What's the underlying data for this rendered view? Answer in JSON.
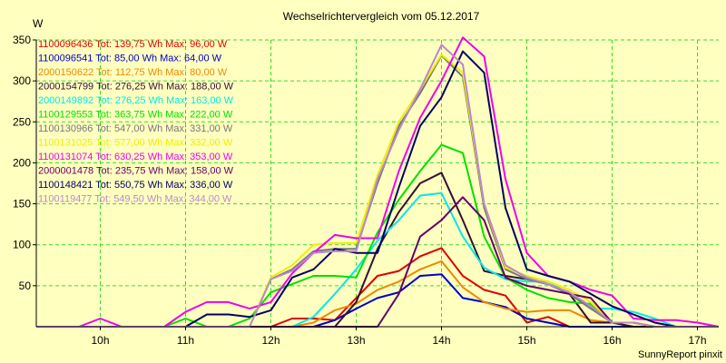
{
  "background_color": "#ffffc0",
  "plot_color": "#ffffc0",
  "grid_color": "#33dd33",
  "chart_data": {
    "type": "line",
    "title": "Wechselrichtervergleich vom 05.12.2017",
    "ylabel": "W",
    "xlabel": "",
    "footer": "SunnyReport pinxit",
    "ylim": [
      0,
      350
    ],
    "xlim": [
      9.25,
      17.25
    ],
    "x_ticks": [
      {
        "value": 10,
        "label": "10h"
      },
      {
        "value": 11,
        "label": "11h"
      },
      {
        "value": 12,
        "label": "12h"
      },
      {
        "value": 13,
        "label": "13h"
      },
      {
        "value": 14,
        "label": "14h"
      },
      {
        "value": 15,
        "label": "15h"
      },
      {
        "value": 16,
        "label": "16h"
      },
      {
        "value": 17,
        "label": "17h"
      }
    ],
    "y_ticks": [
      {
        "value": 50,
        "label": "50"
      },
      {
        "value": 100,
        "label": "100"
      },
      {
        "value": 150,
        "label": "150"
      },
      {
        "value": 200,
        "label": "200"
      },
      {
        "value": 250,
        "label": "250"
      },
      {
        "value": 300,
        "label": "300"
      },
      {
        "value": 350,
        "label": "350"
      }
    ],
    "grid": true,
    "legend_position": "top-left",
    "x": [
      9.25,
      9.5,
      9.75,
      10.0,
      10.25,
      10.5,
      10.75,
      11.0,
      11.25,
      11.5,
      11.75,
      12.0,
      12.25,
      12.5,
      12.75,
      13.0,
      13.25,
      13.5,
      13.75,
      14.0,
      14.25,
      14.5,
      14.75,
      15.0,
      15.25,
      15.5,
      15.75,
      16.0,
      16.25,
      16.5,
      16.75,
      17.0,
      17.25
    ],
    "series": [
      {
        "name": "1100096436 Tot: 139,75 Wh Max: 96,00 W",
        "color": "#dd0000",
        "values": [
          0,
          0,
          0,
          0,
          0,
          0,
          0,
          0,
          0,
          0,
          0,
          0,
          10,
          10,
          8,
          35,
          62,
          68,
          86,
          96,
          62,
          45,
          38,
          5,
          12,
          0,
          0,
          0,
          0,
          0,
          0,
          0,
          0
        ]
      },
      {
        "name": "1100096541 Tot: 85,00 Wh Max: 64,00 W",
        "color": "#0000cc",
        "values": [
          0,
          0,
          0,
          0,
          0,
          0,
          0,
          0,
          0,
          0,
          0,
          0,
          0,
          0,
          8,
          22,
          35,
          42,
          62,
          64,
          35,
          30,
          24,
          10,
          5,
          0,
          0,
          0,
          0,
          0,
          0,
          0,
          0
        ]
      },
      {
        "name": "2000150622 Tot: 112,75 Wh Max: 80,00 W",
        "color": "#ee8800",
        "values": [
          0,
          0,
          0,
          0,
          0,
          0,
          0,
          0,
          0,
          0,
          0,
          0,
          0,
          5,
          20,
          28,
          45,
          55,
          70,
          80,
          48,
          30,
          22,
          18,
          20,
          20,
          8,
          5,
          0,
          0,
          0,
          0,
          0
        ]
      },
      {
        "name": "2000154799 Tot: 276,25 Wh Max: 188,00 W",
        "color": "#331133",
        "values": [
          0,
          0,
          0,
          0,
          0,
          0,
          0,
          0,
          0,
          0,
          0,
          0,
          0,
          0,
          0,
          30,
          95,
          140,
          175,
          188,
          130,
          68,
          62,
          58,
          52,
          40,
          5,
          5,
          0,
          0,
          0,
          0,
          0
        ]
      },
      {
        "name": "2000149892 Tot: 276,25 Wh Max: 163,00 W",
        "color": "#00e8e8",
        "values": [
          0,
          0,
          0,
          0,
          0,
          0,
          0,
          0,
          0,
          0,
          0,
          0,
          0,
          12,
          40,
          70,
          105,
          130,
          160,
          163,
          110,
          72,
          58,
          55,
          55,
          40,
          22,
          22,
          18,
          10,
          0,
          0,
          0
        ]
      },
      {
        "name": "1100129553 Tot: 363,75 Wh Max: 222,00 W",
        "color": "#00e000",
        "values": [
          0,
          0,
          0,
          0,
          0,
          0,
          0,
          10,
          0,
          0,
          10,
          42,
          52,
          62,
          62,
          60,
          115,
          155,
          190,
          222,
          212,
          110,
          60,
          45,
          35,
          30,
          28,
          5,
          5,
          0,
          0,
          0,
          0
        ]
      },
      {
        "name": "1100130966 Tot: 547,00 Wh Max: 331,00 W",
        "color": "#777777",
        "values": [
          0,
          0,
          0,
          0,
          0,
          0,
          0,
          0,
          0,
          0,
          0,
          58,
          70,
          92,
          95,
          95,
          175,
          245,
          285,
          331,
          305,
          145,
          70,
          58,
          52,
          40,
          22,
          5,
          5,
          0,
          0,
          0,
          0
        ]
      },
      {
        "name": "1100131025 Tot: 577,00 Wh Max: 332,00 W",
        "color": "#eeee00",
        "values": [
          0,
          0,
          0,
          0,
          0,
          0,
          0,
          0,
          0,
          0,
          0,
          60,
          75,
          100,
          102,
          102,
          185,
          250,
          290,
          332,
          310,
          150,
          72,
          62,
          55,
          45,
          30,
          5,
          5,
          0,
          0,
          0,
          0
        ]
      },
      {
        "name": "1100131074 Tot: 630,25 Wh Max: 353,00 W",
        "color": "#ee00ee",
        "values": [
          0,
          0,
          0,
          10,
          0,
          0,
          0,
          18,
          30,
          30,
          22,
          30,
          65,
          90,
          112,
          108,
          108,
          190,
          255,
          300,
          353,
          330,
          180,
          90,
          62,
          55,
          45,
          38,
          10,
          8,
          8,
          5,
          0
        ]
      },
      {
        "name": "2000001478 Tot: 235,75 Wh Max: 158,00 W",
        "color": "#660066",
        "values": [
          0,
          0,
          0,
          0,
          0,
          0,
          0,
          0,
          0,
          0,
          0,
          0,
          0,
          0,
          0,
          0,
          0,
          40,
          110,
          130,
          158,
          130,
          60,
          50,
          45,
          40,
          35,
          5,
          5,
          0,
          0,
          0,
          0
        ]
      },
      {
        "name": "1100148421 Tot: 550,75 Wh Max: 336,00 W",
        "color": "#000066",
        "values": [
          0,
          0,
          0,
          0,
          0,
          0,
          0,
          0,
          15,
          15,
          12,
          20,
          60,
          70,
          95,
          90,
          90,
          170,
          245,
          280,
          336,
          310,
          145,
          70,
          62,
          55,
          40,
          25,
          15,
          5,
          0,
          0,
          0
        ]
      },
      {
        "name": "1100119477 Tot: 549,50 Wh Max: 344,00 W",
        "color": "#bb88cc",
        "values": [
          0,
          0,
          0,
          0,
          0,
          0,
          0,
          0,
          0,
          0,
          0,
          58,
          68,
          90,
          92,
          92,
          180,
          240,
          290,
          344,
          320,
          150,
          75,
          60,
          52,
          42,
          25,
          5,
          5,
          0,
          0,
          0,
          0
        ]
      }
    ]
  }
}
